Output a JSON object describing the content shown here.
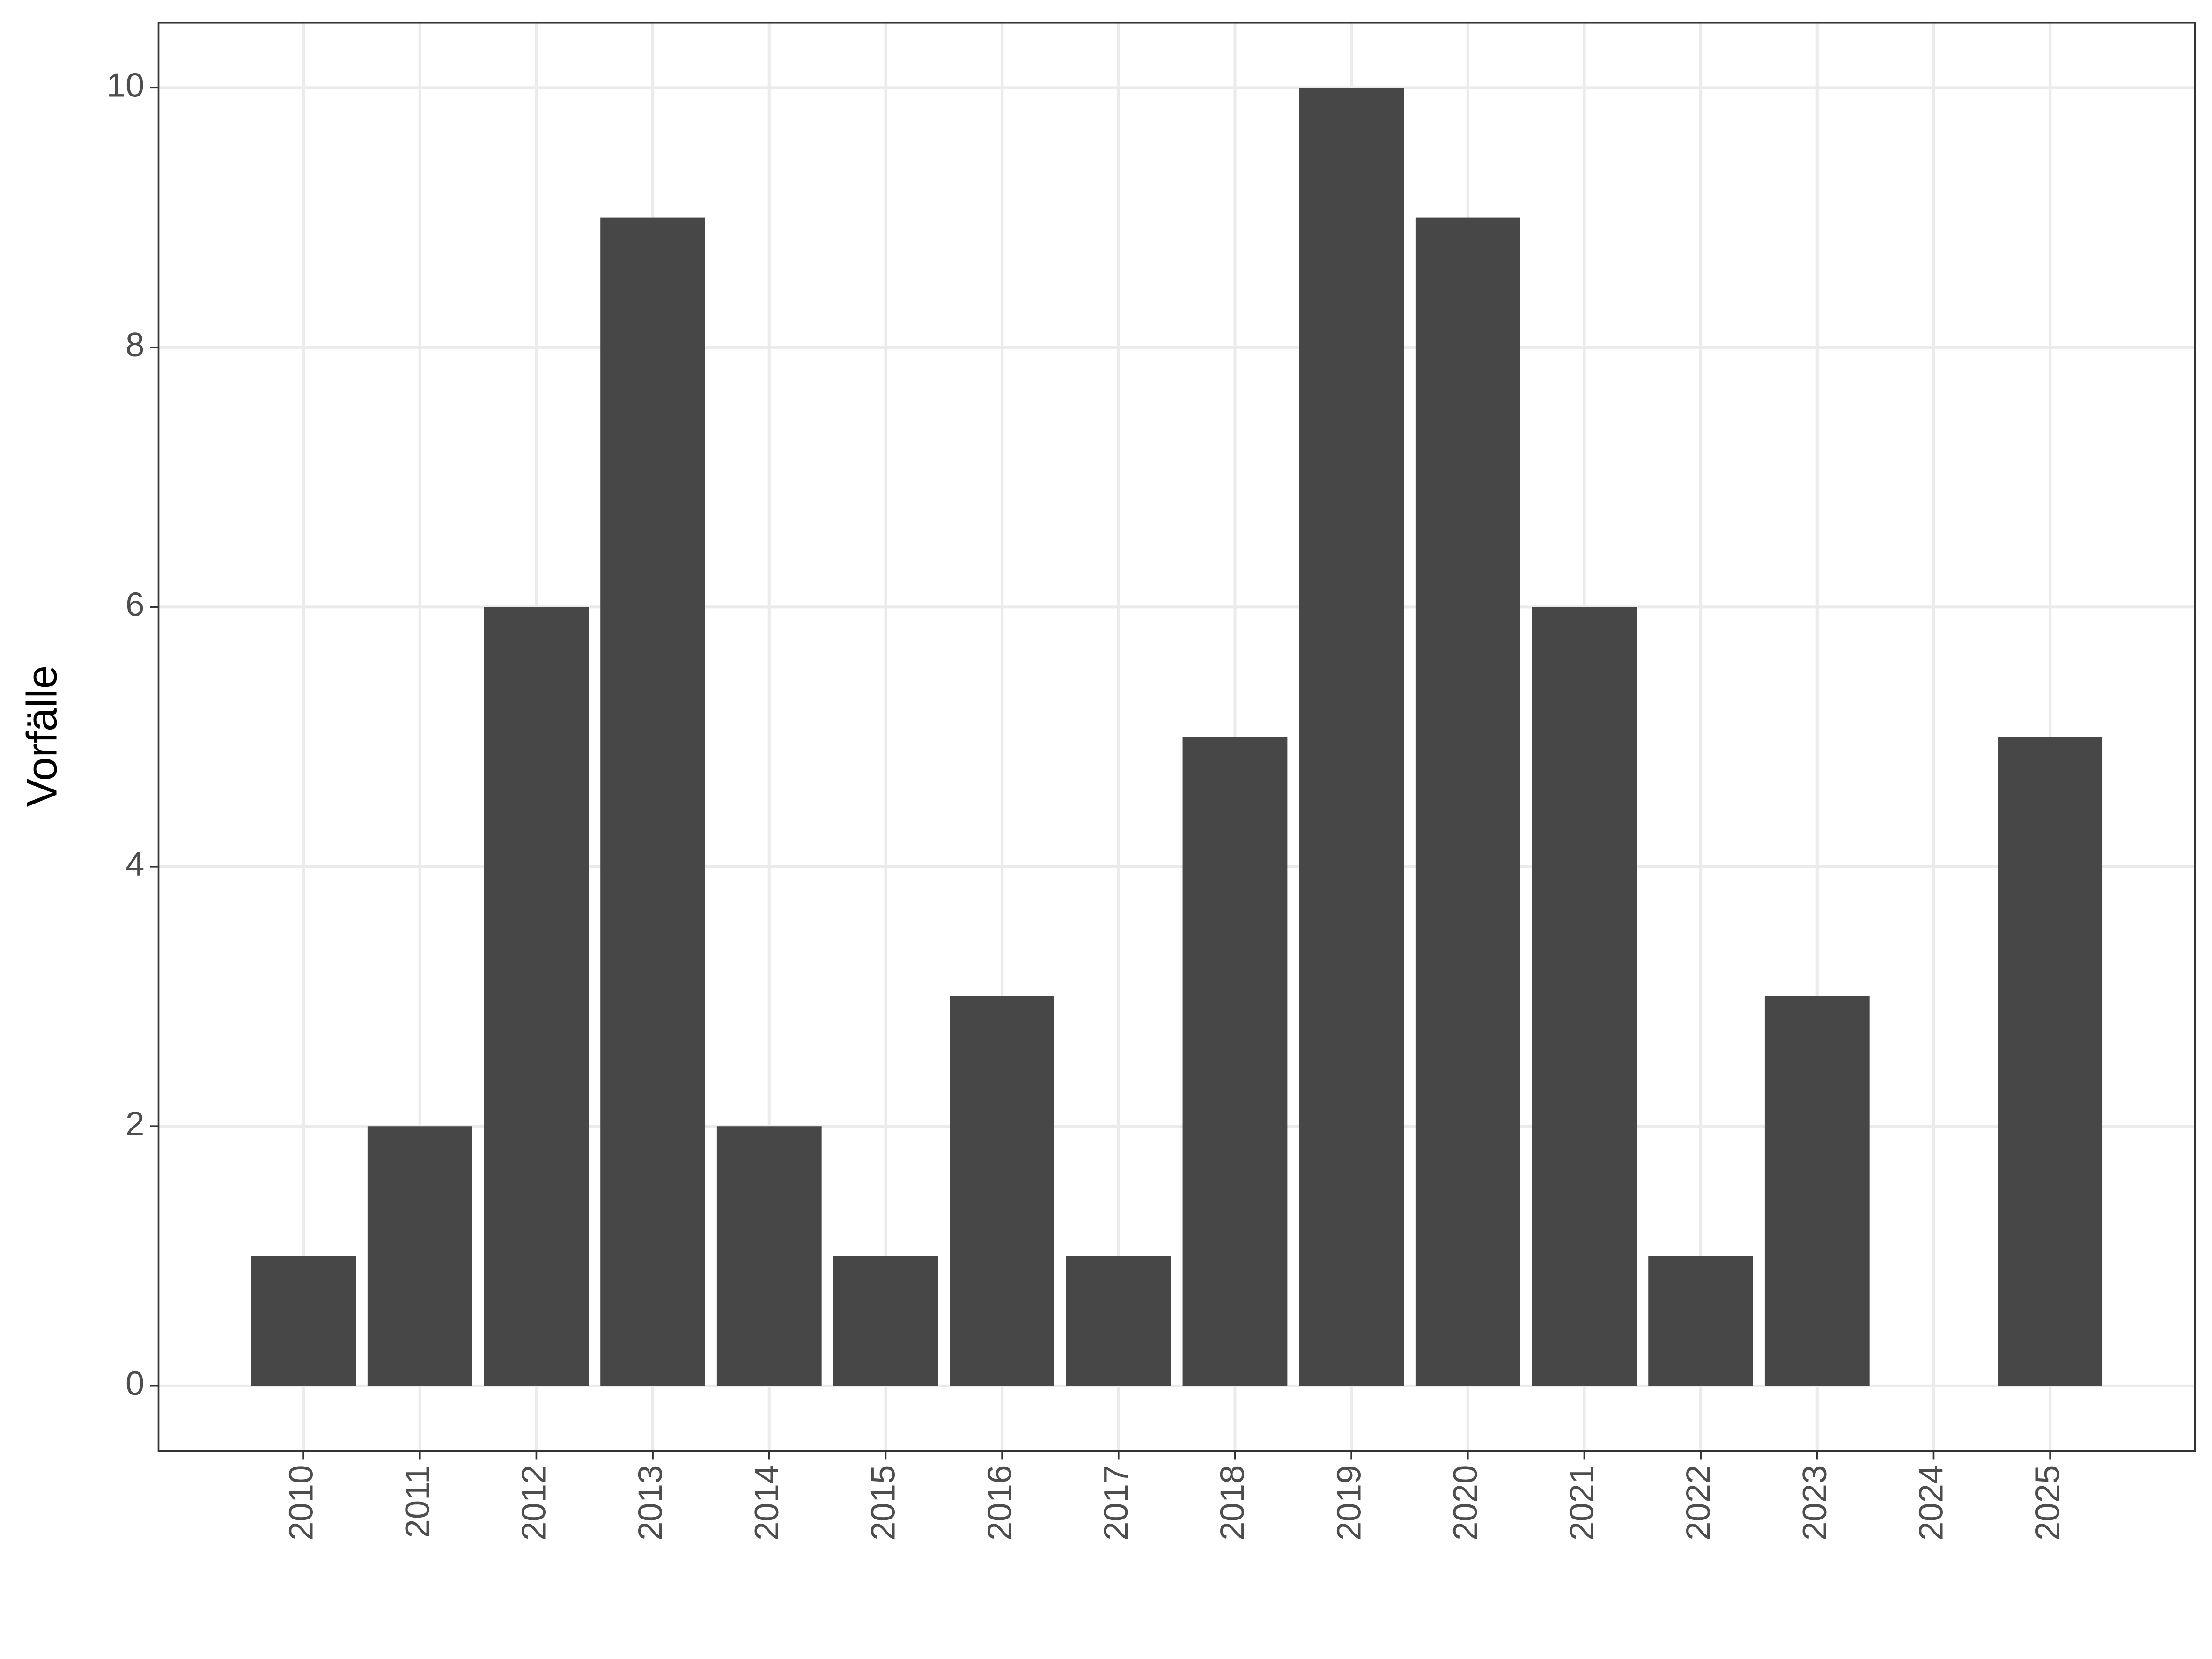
{
  "chart_data": {
    "type": "bar",
    "y_label": "Vorfälle",
    "x": [
      2010,
      2011,
      2012,
      2013,
      2014,
      2015,
      2016,
      2017,
      2018,
      2019,
      2020,
      2021,
      2022,
      2023,
      2024,
      2025
    ],
    "values": [
      1,
      2,
      6,
      9,
      2,
      1,
      3,
      1,
      5,
      10,
      9,
      6,
      1,
      3,
      0,
      5
    ],
    "color": "#474747",
    "xlim": [
      2008.755,
      2026.245
    ],
    "xticks": [
      2010,
      2011,
      2012,
      2013,
      2014,
      2015,
      2016,
      2017,
      2018,
      2019,
      2020,
      2021,
      2022,
      2023,
      2024,
      2025
    ],
    "ylim": [
      -0.5,
      10.5
    ],
    "yticks": [
      0,
      2,
      4,
      6,
      8,
      10
    ],
    "grid": true
  }
}
